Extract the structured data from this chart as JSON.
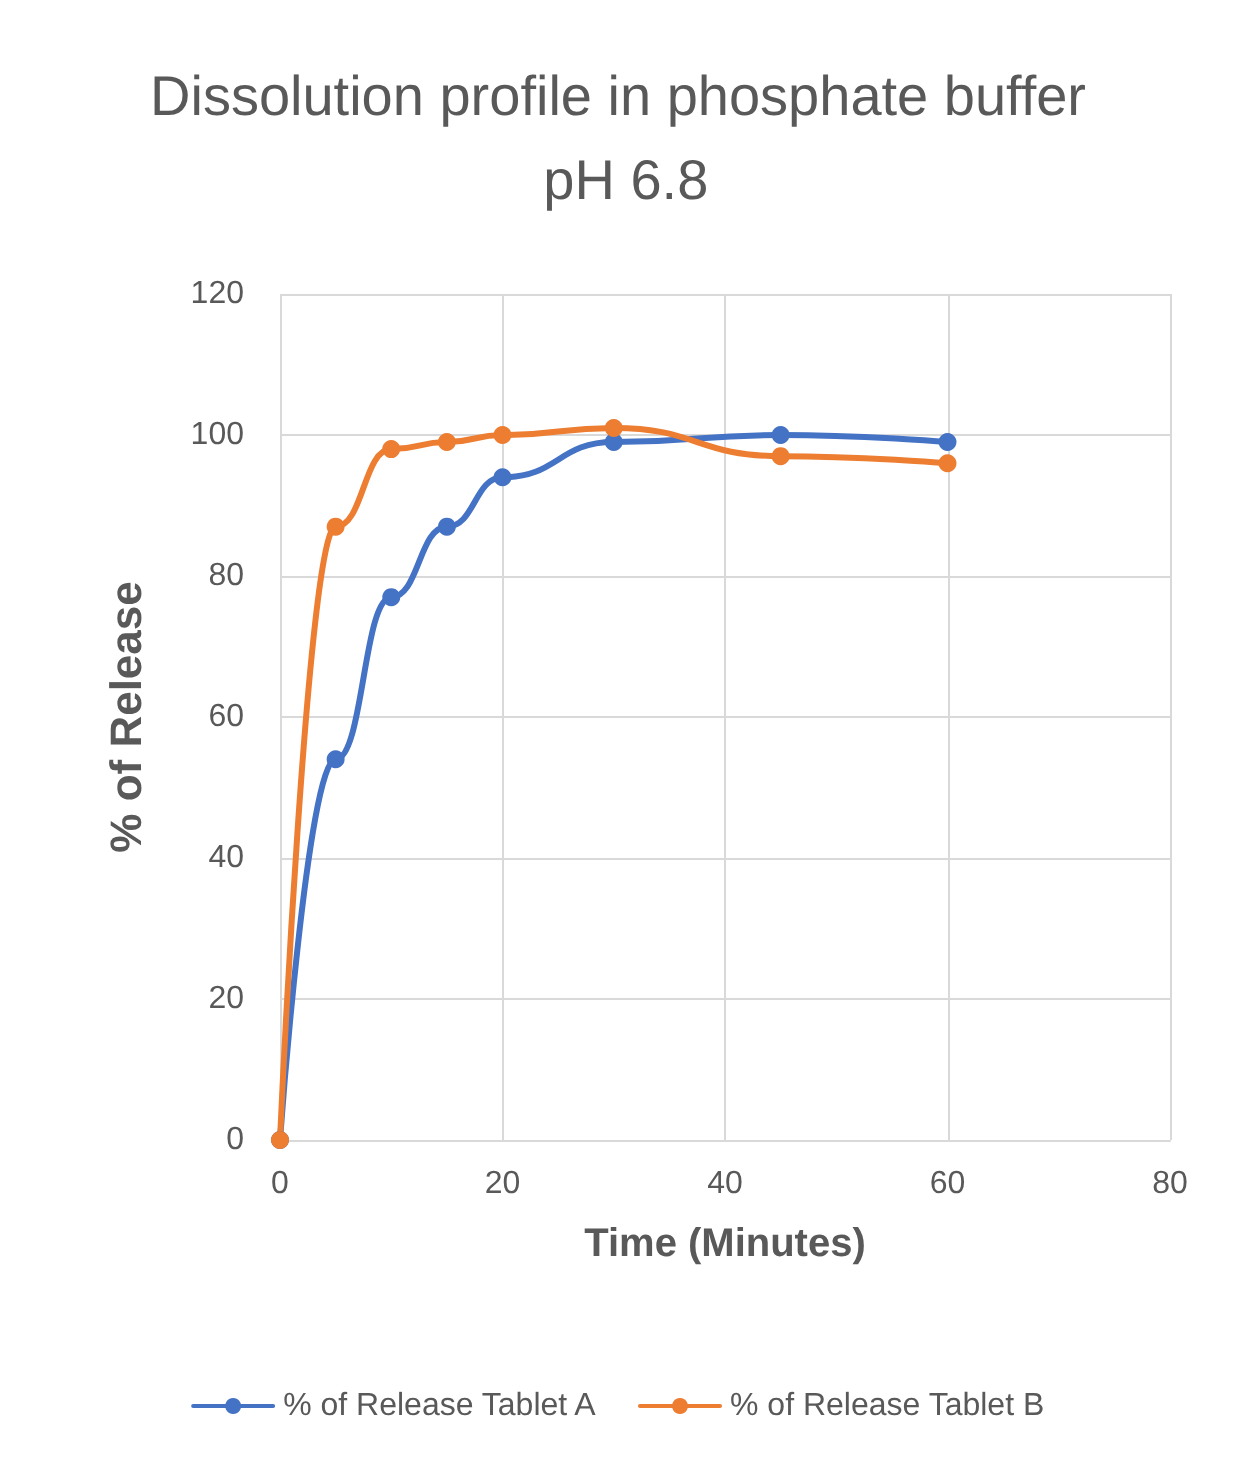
{
  "chart_data": {
    "type": "line",
    "title": "Dissolution profile in phosphate buffer pH 6.8",
    "xlabel": "Time (Minutes)",
    "ylabel": "% of Release",
    "x": [
      0,
      5,
      10,
      15,
      20,
      30,
      45,
      60
    ],
    "series": [
      {
        "name": "% of Release Tablet A",
        "color": "#4472c4",
        "values": [
          0,
          54,
          77,
          87,
          94,
          99,
          100,
          99
        ]
      },
      {
        "name": "% of Release Tablet B",
        "color": "#ed7d31",
        "values": [
          0,
          87,
          98,
          99,
          100,
          101,
          97,
          96
        ]
      }
    ],
    "xlim": [
      0,
      80
    ],
    "xticks": [
      0,
      20,
      40,
      60,
      80
    ],
    "ylim": [
      0,
      120
    ],
    "yticks": [
      0,
      20,
      40,
      60,
      80,
      100,
      120
    ],
    "grid": true,
    "legend": "bottom",
    "marker": "circle",
    "line_style": "solid"
  }
}
